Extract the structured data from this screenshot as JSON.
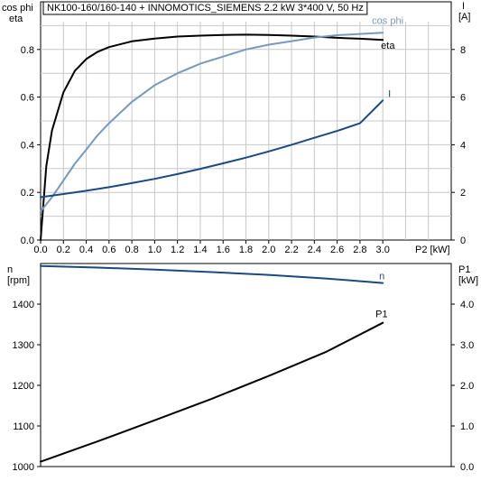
{
  "title": "NK100-160/160-140 + INNOMOTICS_SIEMENS   2.2 kW   3*400 V, 50 Hz",
  "chart_data": [
    {
      "type": "line",
      "name": "top-chart",
      "xlabel": "P2 [kW]",
      "xlim": [
        0,
        3.6
      ],
      "xticks": [
        "0.0",
        "0.2",
        "0.4",
        "0.6",
        "0.8",
        "1.0",
        "1.2",
        "1.4",
        "1.6",
        "1.8",
        "2.0",
        "2.2",
        "2.4",
        "2.6",
        "2.8",
        "3.0"
      ],
      "y_left": {
        "label_line1": "cos phi",
        "label_line2": "eta",
        "ylim": [
          0,
          1.0
        ],
        "ticks": [
          "0.0",
          "0.2",
          "0.4",
          "0.6",
          "0.8"
        ]
      },
      "y_right": {
        "label_line1": "I",
        "label_line2": "[A]",
        "ylim": [
          0,
          10
        ],
        "ticks": [
          "0",
          "2",
          "4",
          "6",
          "8"
        ]
      },
      "grid": true,
      "series": [
        {
          "name": "eta",
          "axis": "left",
          "color": "#000000",
          "x": [
            0.0,
            0.05,
            0.1,
            0.2,
            0.3,
            0.4,
            0.5,
            0.6,
            0.8,
            1.0,
            1.2,
            1.4,
            1.6,
            1.8,
            2.0,
            2.2,
            2.4,
            2.6,
            2.8,
            3.0
          ],
          "y": [
            0.0,
            0.31,
            0.46,
            0.62,
            0.71,
            0.76,
            0.79,
            0.81,
            0.834,
            0.846,
            0.854,
            0.858,
            0.861,
            0.862,
            0.861,
            0.858,
            0.854,
            0.849,
            0.845,
            0.84
          ]
        },
        {
          "name": "cos phi",
          "axis": "left",
          "color": "#7799bb",
          "x": [
            0.0,
            0.1,
            0.2,
            0.3,
            0.4,
            0.5,
            0.6,
            0.8,
            1.0,
            1.2,
            1.4,
            1.6,
            1.8,
            2.0,
            2.2,
            2.4,
            2.6,
            2.8,
            3.0
          ],
          "y": [
            0.12,
            0.18,
            0.25,
            0.32,
            0.38,
            0.44,
            0.49,
            0.58,
            0.65,
            0.7,
            0.74,
            0.77,
            0.8,
            0.82,
            0.835,
            0.85,
            0.86,
            0.865,
            0.87
          ]
        },
        {
          "name": "I",
          "axis": "right",
          "color": "#1a4a80",
          "x": [
            0.0,
            0.2,
            0.4,
            0.6,
            0.8,
            1.0,
            1.2,
            1.4,
            1.6,
            1.8,
            2.0,
            2.2,
            2.4,
            2.6,
            2.8,
            3.0
          ],
          "y": [
            1.8,
            1.93,
            2.07,
            2.22,
            2.39,
            2.57,
            2.77,
            2.99,
            3.22,
            3.46,
            3.72,
            4.0,
            4.29,
            4.58,
            4.9,
            5.86
          ]
        }
      ]
    },
    {
      "type": "line",
      "name": "bottom-chart",
      "xlim": [
        0,
        3.6
      ],
      "y_left": {
        "label_line1": "n",
        "label_line2": "[rpm]",
        "ylim": [
          1000,
          1500
        ],
        "ticks": [
          "1000",
          "1100",
          "1200",
          "1300",
          "1400"
        ]
      },
      "y_right": {
        "label_line1": "P1",
        "label_line2": "[kW]",
        "ylim": [
          0,
          5.0
        ],
        "ticks": [
          "0.0",
          "1.0",
          "2.0",
          "3.0",
          "4.0"
        ]
      },
      "grid": false,
      "series": [
        {
          "name": "n",
          "axis": "left",
          "color": "#1a4a80",
          "x": [
            0.0,
            0.5,
            1.0,
            1.5,
            2.0,
            2.5,
            3.0
          ],
          "y": [
            1494,
            1490,
            1485,
            1479,
            1472,
            1463,
            1452
          ]
        },
        {
          "name": "P1",
          "axis": "right",
          "color": "#000000",
          "x": [
            0.0,
            0.5,
            1.0,
            1.5,
            2.0,
            2.5,
            3.0
          ],
          "y": [
            0.12,
            0.62,
            1.14,
            1.67,
            2.23,
            2.82,
            3.54
          ]
        }
      ]
    }
  ]
}
